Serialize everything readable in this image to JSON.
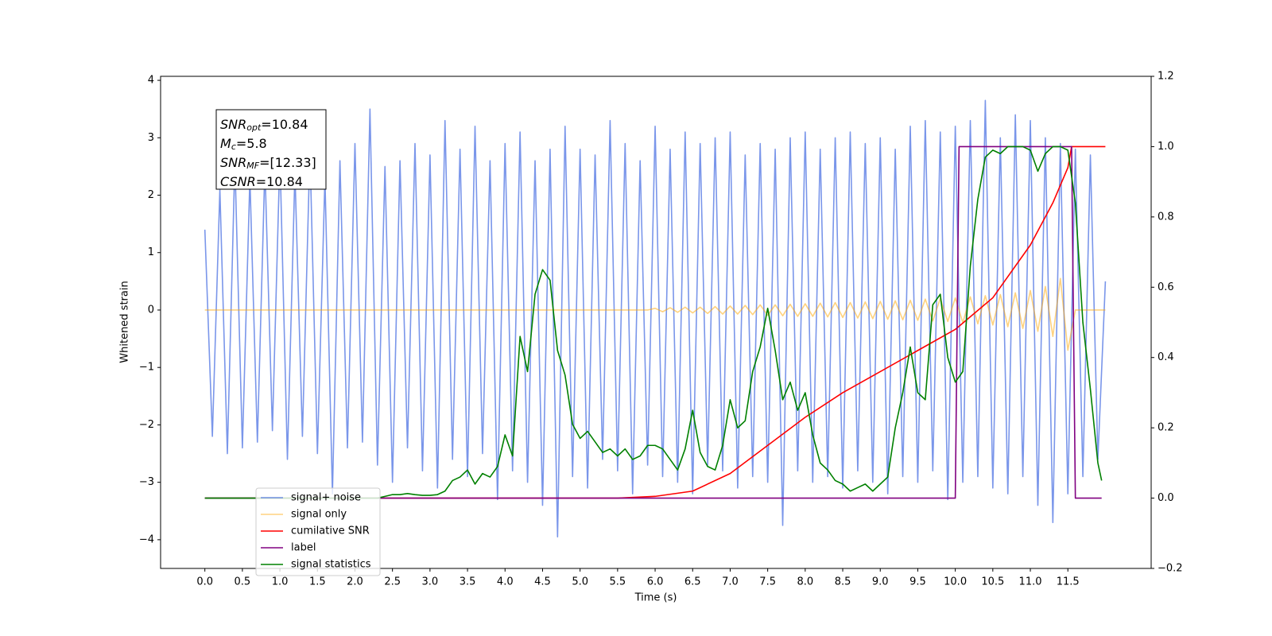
{
  "chart_data": {
    "type": "line",
    "xlabel": "Time (s)",
    "ylabel": "Whitened strain",
    "xlim": [
      -0.59,
      12.61
    ],
    "ylim": [
      -4.5,
      4.07
    ],
    "y2lim": [
      -0.2,
      1.2
    ],
    "xticks": [
      {
        "value": 0,
        "label": "0.0"
      },
      0.5,
      {
        "value": 1,
        "label": "1.0"
      },
      1.5,
      {
        "value": 2,
        "label": "2.0"
      },
      2.5,
      {
        "value": 3,
        "label": "3.0"
      },
      3.5,
      {
        "value": 4,
        "label": "4.0"
      },
      4.5,
      {
        "value": 5,
        "label": "5.0"
      },
      5.5,
      {
        "value": 6,
        "label": "6.0"
      },
      6.5,
      {
        "value": 7,
        "label": "7.0"
      },
      7.5,
      {
        "value": 8,
        "label": "8.0"
      },
      8.5,
      {
        "value": 9,
        "label": "9.0"
      },
      9.5,
      {
        "value": 10,
        "label": "10.0"
      },
      10.5,
      {
        "value": 11,
        "label": "11.0"
      },
      11.5
    ],
    "yticks": [
      {
        "value": -4,
        "label": "−4"
      },
      {
        "value": -3,
        "label": "−3"
      },
      {
        "value": -2,
        "label": "−2"
      },
      {
        "value": -1,
        "label": "−1"
      },
      0,
      1,
      2,
      3,
      4
    ],
    "y2ticks": [
      {
        "value": -0.2,
        "label": "−0.2"
      },
      {
        "value": 0,
        "label": "0.0"
      },
      0.2,
      0.4,
      0.6,
      0.8,
      {
        "value": 1,
        "label": "1.0"
      },
      1.2
    ],
    "legend": "lower left",
    "annotation": [
      {
        "main": "SNR",
        "sub": "opt",
        "rest": "=10.84"
      },
      {
        "main": "M",
        "sub": "c",
        "rest": "=5.8"
      },
      {
        "main": "SNR",
        "sub": "MF",
        "rest": "=[12.33]"
      },
      {
        "main": "CSNR",
        "rest": "=10.84"
      }
    ],
    "x": [
      0,
      0.1,
      0.2,
      0.3,
      0.4,
      0.5,
      0.6,
      0.7,
      0.8,
      0.9,
      1,
      1.1,
      1.2,
      1.3,
      1.4,
      1.5,
      1.6,
      1.7,
      1.8,
      1.9,
      2,
      2.1,
      2.2,
      2.3,
      2.4,
      2.5,
      2.6,
      2.7,
      2.8,
      2.9,
      3,
      3.1,
      3.2,
      3.3,
      3.4,
      3.5,
      3.6,
      3.7,
      3.8,
      3.9,
      4,
      4.1,
      4.2,
      4.3,
      4.4,
      4.5,
      4.6,
      4.7,
      4.8,
      4.9,
      5,
      5.1,
      5.2,
      5.3,
      5.4,
      5.5,
      5.6,
      5.7,
      5.8,
      5.9,
      6,
      6.1,
      6.2,
      6.3,
      6.4,
      6.5,
      6.6,
      6.7,
      6.8,
      6.9,
      7,
      7.1,
      7.2,
      7.3,
      7.4,
      7.5,
      7.6,
      7.7,
      7.8,
      7.9,
      8,
      8.1,
      8.2,
      8.3,
      8.4,
      8.5,
      8.6,
      8.7,
      8.8,
      8.9,
      9,
      9.1,
      9.2,
      9.3,
      9.4,
      9.5,
      9.6,
      9.7,
      9.8,
      9.9,
      10,
      10.1,
      10.2,
      10.3,
      10.4,
      10.5,
      10.6,
      10.7,
      10.8,
      10.9,
      11,
      11.1,
      11.2,
      11.3,
      11.4,
      11.5,
      11.6,
      11.7,
      11.8,
      11.9,
      12
    ],
    "series": [
      {
        "name": "signal+ noise",
        "color": "#4169e1",
        "alpha": 0.7,
        "values": [
          1.4,
          -2.2,
          2.1,
          -2.5,
          2.6,
          -2.4,
          2.3,
          -2.3,
          2.5,
          -2.1,
          2.7,
          -2.6,
          2.4,
          -2.2,
          2.8,
          -2.5,
          2.3,
          -3.2,
          2.6,
          -2.4,
          2.9,
          -2.3,
          3.5,
          -2.7,
          2.5,
          -3.0,
          2.6,
          -2.4,
          2.9,
          -2.8,
          2.7,
          -3.1,
          3.3,
          -2.6,
          2.8,
          -2.9,
          3.2,
          -2.5,
          2.6,
          -3.3,
          2.9,
          -2.8,
          3.1,
          -3.0,
          2.6,
          -3.4,
          2.8,
          -3.95,
          3.2,
          -2.9,
          2.8,
          -3.1,
          2.7,
          -2.6,
          3.3,
          -2.8,
          2.9,
          -3.2,
          2.6,
          -2.7,
          3.2,
          -2.9,
          2.8,
          -3.0,
          3.1,
          -3.2,
          2.9,
          -2.7,
          3.0,
          -2.8,
          3.1,
          -3.1,
          2.7,
          -2.9,
          2.9,
          -3.0,
          2.8,
          -3.75,
          3.0,
          -2.8,
          3.1,
          -3.0,
          2.8,
          -2.9,
          3.0,
          -3.1,
          3.1,
          -2.8,
          2.9,
          -3.0,
          3.0,
          -3.2,
          2.8,
          -2.9,
          3.2,
          -3.0,
          3.3,
          -2.8,
          3.1,
          -3.3,
          3.2,
          -3.0,
          3.3,
          -2.9,
          3.65,
          -3.1,
          3.0,
          -3.2,
          3.4,
          -2.9,
          3.3,
          -3.4,
          3.0,
          -3.7,
          2.9,
          -3.2,
          2.8,
          -2.9,
          2.7,
          -2.6,
          0.5
        ]
      },
      {
        "name": "signal only",
        "color": "#ffa500",
        "alpha": 0.5,
        "values": [
          0,
          0,
          0,
          0,
          0,
          0,
          0,
          0,
          0,
          0,
          0,
          0,
          0,
          0,
          0,
          0,
          0,
          0,
          0,
          0,
          0,
          0,
          0,
          0,
          0,
          0,
          0,
          0,
          0,
          0,
          0,
          0,
          0,
          0,
          0,
          0,
          0,
          0,
          0,
          0,
          0,
          0,
          0,
          0,
          0,
          0,
          0,
          0,
          0,
          0,
          0,
          0,
          0,
          0,
          0,
          0,
          0,
          0,
          0,
          0,
          0.03,
          -0.03,
          0.04,
          -0.04,
          0.05,
          -0.05,
          0.05,
          -0.06,
          0.06,
          -0.07,
          0.07,
          -0.07,
          0.08,
          -0.08,
          0.09,
          -0.09,
          0.09,
          -0.1,
          0.1,
          -0.11,
          0.11,
          -0.11,
          0.12,
          -0.12,
          0.13,
          -0.13,
          0.13,
          -0.14,
          0.14,
          -0.15,
          0.15,
          -0.16,
          0.16,
          -0.17,
          0.17,
          -0.18,
          0.19,
          -0.19,
          0.2,
          -0.2,
          0.21,
          -0.22,
          0.23,
          -0.24,
          0.25,
          -0.26,
          0.27,
          -0.29,
          0.3,
          -0.32,
          0.34,
          -0.37,
          0.41,
          -0.46,
          0.55,
          -0.7,
          0,
          0,
          0,
          0,
          0
        ]
      },
      {
        "name": "cumilative SNR",
        "color": "#ff0000",
        "axis": "y2",
        "x": [
          0,
          5.5,
          6,
          6.5,
          7,
          7.5,
          8,
          8.5,
          9,
          9.5,
          10,
          10.5,
          11,
          11.3,
          11.5,
          11.55,
          12
        ],
        "values": [
          0,
          0,
          0.005,
          0.02,
          0.07,
          0.15,
          0.23,
          0.3,
          0.36,
          0.42,
          0.48,
          0.57,
          0.72,
          0.84,
          0.94,
          1,
          1
        ]
      },
      {
        "name": "label",
        "color": "#800080",
        "axis": "y2",
        "x": [
          0,
          10,
          10.05,
          11.55,
          11.6,
          11.95
        ],
        "values": [
          0,
          0,
          1,
          1,
          0,
          0
        ]
      },
      {
        "name": "signal statistics",
        "color": "#008000",
        "axis": "y2",
        "x": [
          0,
          2.3,
          2.4,
          2.5,
          2.6,
          2.7,
          2.8,
          2.9,
          3,
          3.1,
          3.2,
          3.3,
          3.4,
          3.5,
          3.6,
          3.7,
          3.8,
          3.9,
          4,
          4.1,
          4.2,
          4.3,
          4.4,
          4.5,
          4.6,
          4.7,
          4.8,
          4.9,
          5,
          5.1,
          5.2,
          5.3,
          5.4,
          5.5,
          5.6,
          5.7,
          5.8,
          5.9,
          6,
          6.1,
          6.2,
          6.3,
          6.4,
          6.5,
          6.6,
          6.7,
          6.8,
          6.9,
          7,
          7.1,
          7.2,
          7.3,
          7.4,
          7.5,
          7.6,
          7.7,
          7.8,
          7.9,
          8,
          8.1,
          8.2,
          8.3,
          8.4,
          8.5,
          8.6,
          8.7,
          8.8,
          8.9,
          9,
          9.1,
          9.2,
          9.3,
          9.4,
          9.5,
          9.6,
          9.7,
          9.8,
          9.9,
          10,
          10.1,
          10.2,
          10.3,
          10.4,
          10.5,
          10.6,
          10.7,
          10.8,
          10.9,
          11,
          11.1,
          11.2,
          11.3,
          11.4,
          11.5,
          11.6,
          11.7,
          11.8,
          11.9,
          11.95
        ],
        "values": [
          0,
          0,
          0.005,
          0.01,
          0.01,
          0.013,
          0.01,
          0.008,
          0.008,
          0.01,
          0.02,
          0.05,
          0.06,
          0.08,
          0.04,
          0.07,
          0.06,
          0.09,
          0.18,
          0.12,
          0.46,
          0.36,
          0.58,
          0.65,
          0.62,
          0.42,
          0.35,
          0.21,
          0.17,
          0.19,
          0.16,
          0.13,
          0.14,
          0.12,
          0.14,
          0.11,
          0.12,
          0.15,
          0.15,
          0.14,
          0.11,
          0.08,
          0.14,
          0.25,
          0.13,
          0.09,
          0.08,
          0.15,
          0.28,
          0.2,
          0.22,
          0.36,
          0.43,
          0.54,
          0.42,
          0.28,
          0.33,
          0.25,
          0.3,
          0.18,
          0.1,
          0.08,
          0.05,
          0.04,
          0.02,
          0.03,
          0.04,
          0.02,
          0.04,
          0.06,
          0.2,
          0.3,
          0.43,
          0.3,
          0.28,
          0.55,
          0.58,
          0.4,
          0.33,
          0.36,
          0.66,
          0.85,
          0.97,
          0.99,
          0.98,
          1,
          1,
          1,
          0.99,
          0.93,
          0.98,
          1,
          1,
          0.99,
          0.84,
          0.5,
          0.31,
          0.1,
          0.05
        ]
      }
    ]
  }
}
